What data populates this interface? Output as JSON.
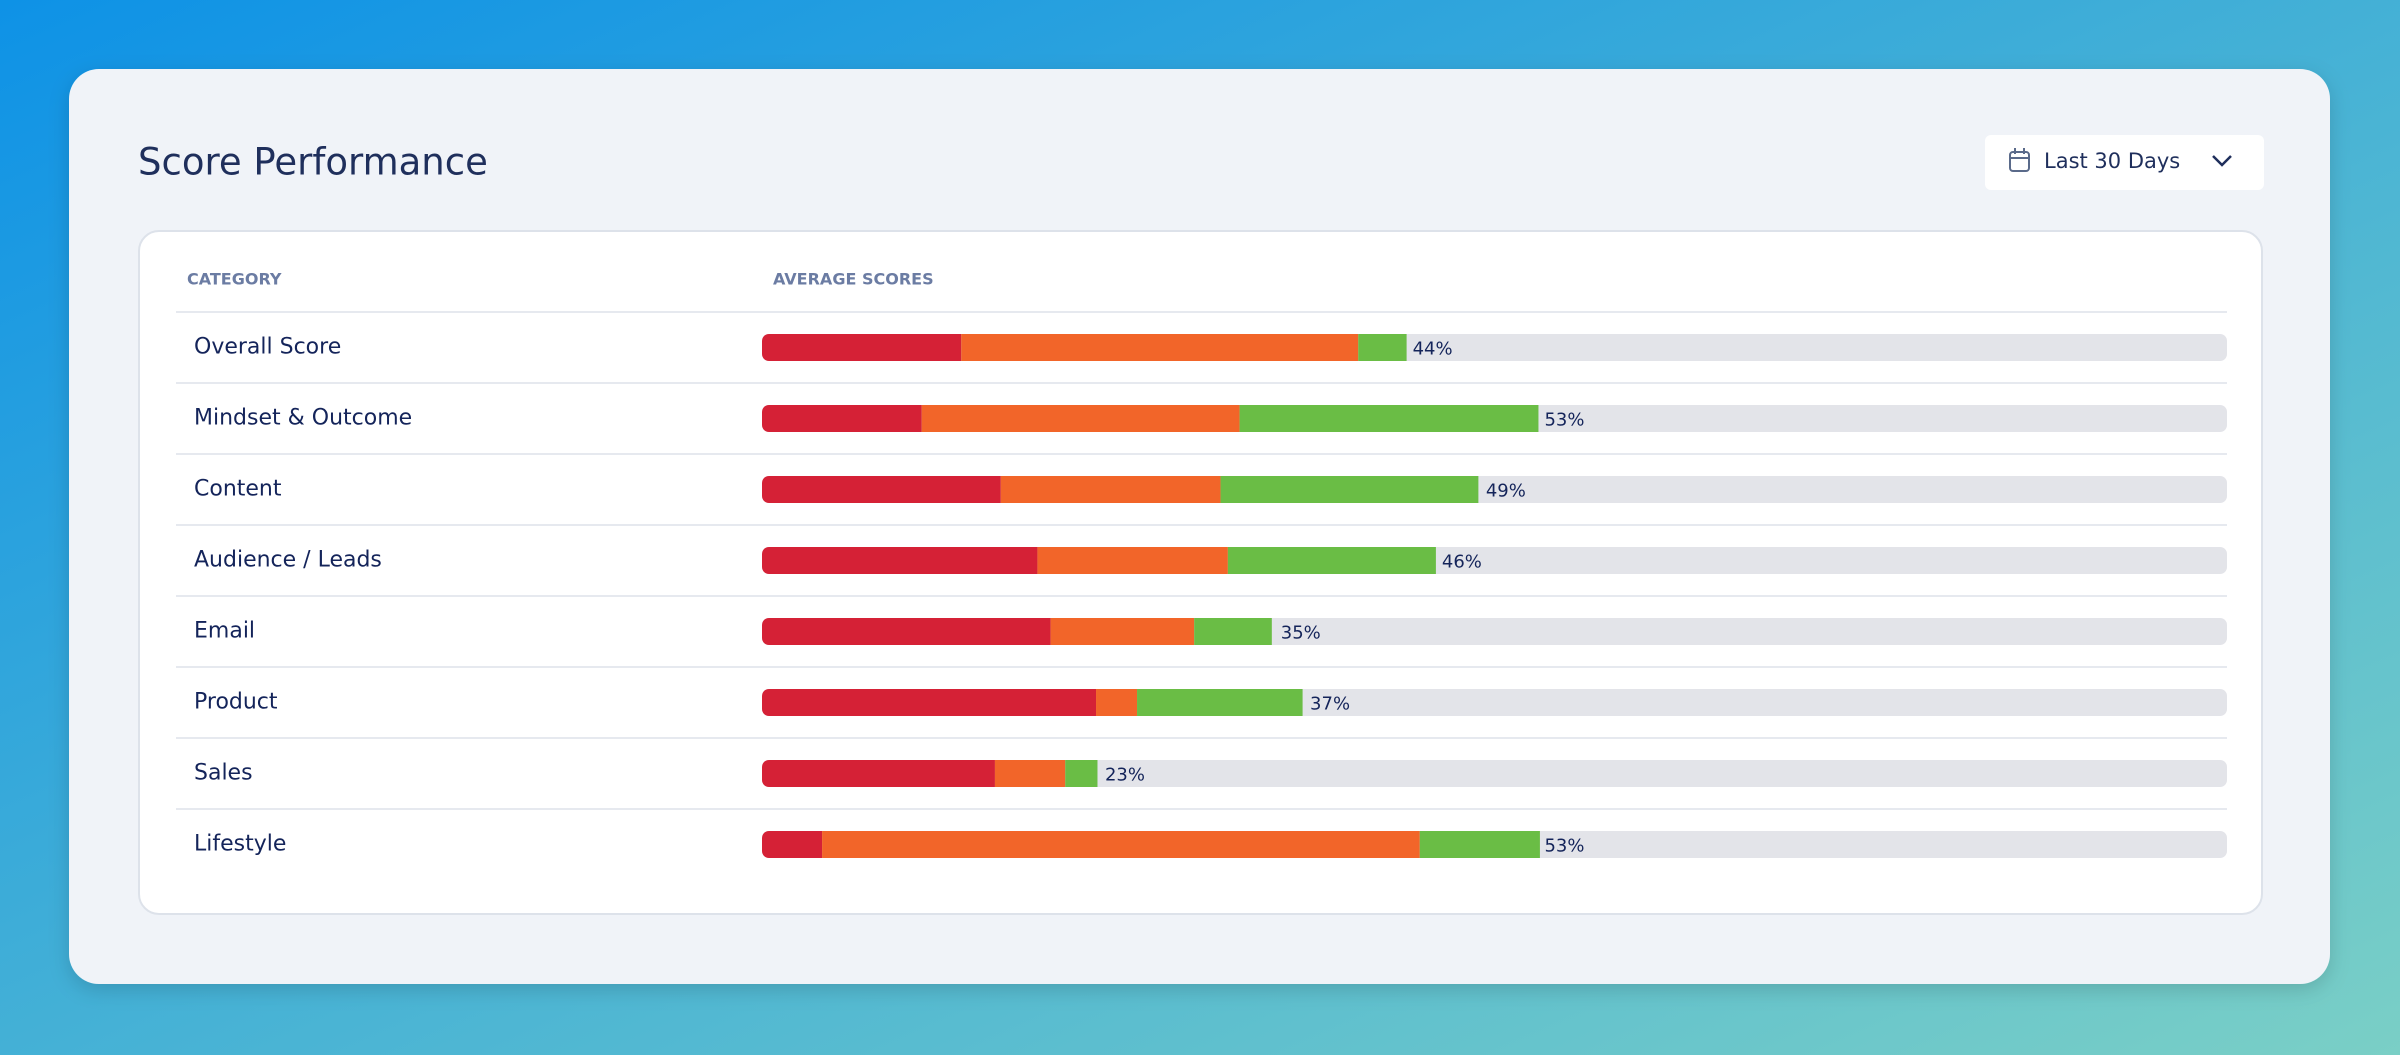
{
  "chart_data": {
    "type": "stacked-bar",
    "title": "Score Performance",
    "filter": "Last 30 Days",
    "columns": [
      "CATEGORY",
      "AVERAGE SCORES"
    ],
    "categories": [
      "Overall Score",
      "Mindset & Outcome",
      "Content",
      "Audience / Leads",
      "Email",
      "Product",
      "Sales",
      "Lifestyle"
    ],
    "series": [
      {
        "color": "#d52136",
        "values": [
          13.6,
          10.9,
          16.3,
          18.8,
          19.7,
          22.8,
          15.9,
          4.1
        ]
      },
      {
        "color": "#f26529",
        "values": [
          27.1,
          21.7,
          15.0,
          13.0,
          9.8,
          2.8,
          4.8,
          40.8
        ]
      },
      {
        "color": "#6abd45",
        "values": [
          3.3,
          20.4,
          17.6,
          14.2,
          5.3,
          11.3,
          2.2,
          8.2
        ]
      }
    ],
    "totals": [
      44,
      53,
      49,
      46,
      35,
      37,
      23,
      53
    ],
    "total_labels": [
      "44%",
      "53%",
      "49%",
      "46%",
      "35%",
      "37%",
      "23%",
      "53%"
    ],
    "xlim": [
      0,
      100
    ],
    "track_color": "#e3e4e9"
  }
}
